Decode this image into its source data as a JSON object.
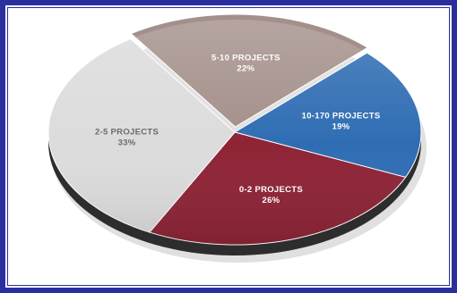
{
  "chart_data": {
    "type": "pie",
    "title": "",
    "slices": [
      {
        "label": "5-10 PROJECTS",
        "percent_text": "22%",
        "value": 22,
        "color": "#a4908a",
        "text_color": "#ffffff"
      },
      {
        "label": "10-170 PROJECTS",
        "percent_text": "19%",
        "value": 19,
        "color": "#2f6db3",
        "text_color": "#ffffff"
      },
      {
        "label": "0-2 PROJECTS",
        "percent_text": "26%",
        "value": 26,
        "color": "#8e2436",
        "text_color": "#ffffff"
      },
      {
        "label": "2-5 PROJECTS",
        "percent_text": "33%",
        "value": 33,
        "color": "#dcdcdc",
        "text_color": "#6b6b6b"
      }
    ],
    "style": "3d-tilted-pie",
    "legend": "none",
    "frame_color": "#2b2f9e"
  }
}
